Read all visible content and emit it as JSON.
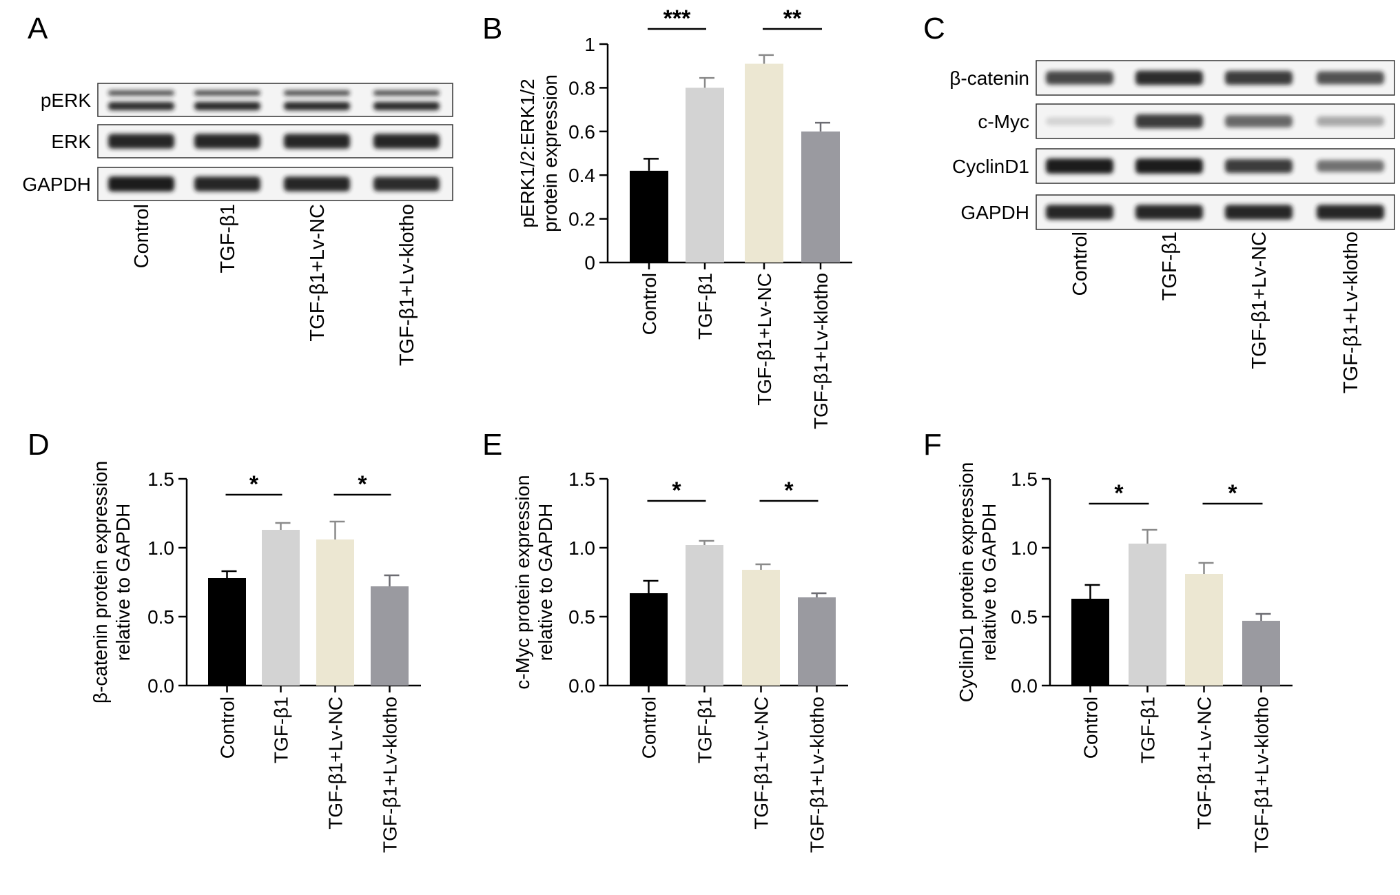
{
  "colors": {
    "control": "#000000",
    "tgf": "#d3d3d3",
    "lvnc": "#ece7d2",
    "klotho": "#9a9aa0",
    "band": "#1a1a1a",
    "membrane": "#f4f4f4"
  },
  "blots": [
    {
      "panel": "A",
      "rows": [
        {
          "name": "pERK",
          "double_band": true,
          "intensity": [
            0.85,
            0.9,
            0.9,
            0.88
          ]
        },
        {
          "name": "ERK",
          "double_band": false,
          "intensity": [
            0.95,
            0.95,
            0.95,
            0.95
          ]
        },
        {
          "name": "GAPDH",
          "double_band": false,
          "intensity": [
            1.0,
            0.95,
            0.95,
            0.92
          ]
        }
      ],
      "lanes": [
        "Control",
        "TGF-β1",
        "TGF-β1+Lv-NC",
        "TGF-β1+Lv-klotho"
      ]
    },
    {
      "panel": "C",
      "rows": [
        {
          "name": "β-catenin",
          "double_band": false,
          "intensity": [
            0.8,
            0.92,
            0.85,
            0.75
          ]
        },
        {
          "name": "c-Myc",
          "double_band": false,
          "intensity": [
            0.15,
            0.85,
            0.65,
            0.35
          ]
        },
        {
          "name": "CyclinD1",
          "double_band": false,
          "intensity": [
            1.0,
            1.0,
            0.85,
            0.6
          ]
        },
        {
          "name": "GAPDH",
          "double_band": false,
          "intensity": [
            0.95,
            0.95,
            0.95,
            0.95
          ]
        }
      ],
      "lanes": [
        "Control",
        "TGF-β1",
        "TGF-β1+Lv-NC",
        "TGF-β1+Lv-klotho"
      ]
    }
  ],
  "chart_data": [
    {
      "panel": "B",
      "type": "bar",
      "categories": [
        "Control",
        "TGF-β1",
        "TGF-β1+Lv-NC",
        "TGF-β1+Lv-klotho"
      ],
      "values": [
        0.42,
        0.8,
        0.91,
        0.6
      ],
      "errors": [
        0.055,
        0.045,
        0.04,
        0.04
      ],
      "ylabel_lines": [
        "pERK1/2:ERK1/2",
        "protein expression"
      ],
      "ylim": [
        0,
        1
      ],
      "yticks": [
        "0",
        "0.2",
        "0.4",
        "0.6",
        "0.8",
        "1"
      ],
      "significance": [
        {
          "from": 0,
          "to": 1,
          "label": "***"
        },
        {
          "from": 2,
          "to": 3,
          "label": "**"
        }
      ]
    },
    {
      "panel": "D",
      "type": "bar",
      "categories": [
        "Control",
        "TGF-β1",
        "TGF-β1+Lv-NC",
        "TGF-β1+Lv-klotho"
      ],
      "values": [
        0.78,
        1.13,
        1.06,
        0.72
      ],
      "errors": [
        0.05,
        0.05,
        0.13,
        0.08
      ],
      "ylabel_lines": [
        "β-catenin protein expression",
        "relative to GAPDH"
      ],
      "ylim": [
        0,
        1.5
      ],
      "yticks": [
        "0.0",
        "0.5",
        "1.0",
        "1.5"
      ],
      "significance": [
        {
          "from": 0,
          "to": 1,
          "label": "*"
        },
        {
          "from": 2,
          "to": 3,
          "label": "*"
        }
      ]
    },
    {
      "panel": "E",
      "type": "bar",
      "categories": [
        "Control",
        "TGF-β1",
        "TGF-β1+Lv-NC",
        "TGF-β1+Lv-klotho"
      ],
      "values": [
        0.67,
        1.02,
        0.84,
        0.64
      ],
      "errors": [
        0.09,
        0.03,
        0.04,
        0.03
      ],
      "ylabel_lines": [
        "c-Myc protein expression",
        "relative to GAPDH"
      ],
      "ylim": [
        0,
        1.5
      ],
      "yticks": [
        "0.0",
        "0.5",
        "1.0",
        "1.5"
      ],
      "significance": [
        {
          "from": 0,
          "to": 1,
          "label": "*"
        },
        {
          "from": 2,
          "to": 3,
          "label": "*"
        }
      ]
    },
    {
      "panel": "F",
      "type": "bar",
      "categories": [
        "Control",
        "TGF-β1",
        "TGF-β1+Lv-NC",
        "TGF-β1+Lv-klotho"
      ],
      "values": [
        0.63,
        1.03,
        0.81,
        0.47
      ],
      "errors": [
        0.1,
        0.1,
        0.08,
        0.05
      ],
      "ylabel_lines": [
        "CyclinD1 protein expression",
        "relative to GAPDH"
      ],
      "ylim": [
        0,
        1.5
      ],
      "yticks": [
        "0.0",
        "0.5",
        "1.0",
        "1.5"
      ],
      "significance": [
        {
          "from": 0,
          "to": 1,
          "label": "*"
        },
        {
          "from": 2,
          "to": 3,
          "label": "*"
        }
      ]
    }
  ]
}
